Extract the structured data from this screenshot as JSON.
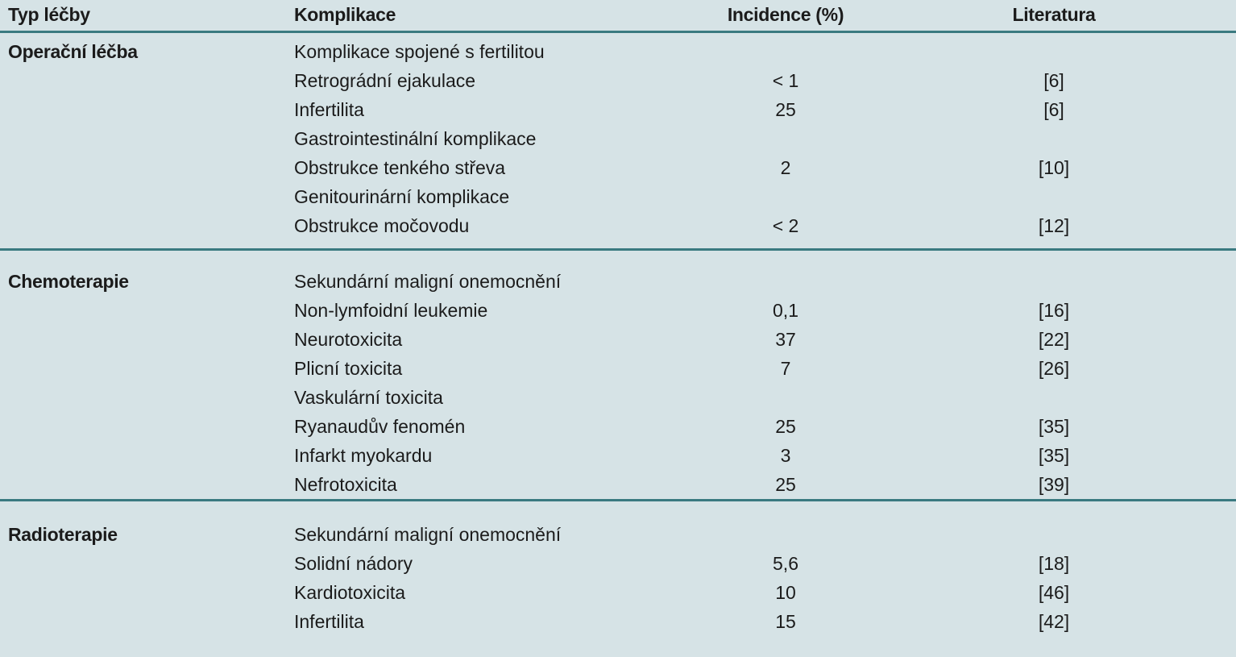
{
  "header": {
    "type": "Typ léčby",
    "complication": "Komplikace",
    "incidence": "Incidence (%)",
    "literature": "Literatura"
  },
  "sections": [
    {
      "type": "Operační léčba",
      "rows": [
        {
          "complication": "Komplikace spojené s fertilitou",
          "incidence": "",
          "literature": ""
        },
        {
          "complication": "Retrográdní ejakulace",
          "incidence": "< 1",
          "literature": "[6]"
        },
        {
          "complication": "Infertilita",
          "incidence": "25",
          "literature": "[6]"
        },
        {
          "complication": "Gastrointestinální komplikace",
          "incidence": "",
          "literature": ""
        },
        {
          "complication": "Obstrukce tenkého střeva",
          "incidence": "2",
          "literature": "[10]"
        },
        {
          "complication": "Genitourinární komplikace",
          "incidence": "",
          "literature": ""
        },
        {
          "complication": "Obstrukce močovodu",
          "incidence": "< 2",
          "literature": "[12]"
        }
      ]
    },
    {
      "type": "Chemoterapie",
      "rows": [
        {
          "complication": "Sekundární maligní onemocnění",
          "incidence": "",
          "literature": ""
        },
        {
          "complication": "Non-lymfoidní leukemie",
          "incidence": "0,1",
          "literature": "[16]"
        },
        {
          "complication": "Neurotoxicita",
          "incidence": "37",
          "literature": "[22]"
        },
        {
          "complication": "Plicní toxicita",
          "incidence": "7",
          "literature": "[26]"
        },
        {
          "complication": "Vaskulární toxicita",
          "incidence": "",
          "literature": ""
        },
        {
          "complication": "Ryanaudův fenomén",
          "incidence": "25",
          "literature": "[35]"
        },
        {
          "complication": "Infarkt myokardu",
          "incidence": "3",
          "literature": "[35]"
        },
        {
          "complication": "Nefrotoxicita",
          "incidence": "25",
          "literature": "[39]"
        }
      ]
    },
    {
      "type": "Radioterapie",
      "rows": [
        {
          "complication": "Sekundární maligní onemocnění",
          "incidence": "",
          "literature": ""
        },
        {
          "complication": "Solidní nádory",
          "incidence": "5,6",
          "literature": "[18]"
        },
        {
          "complication": "Kardiotoxicita",
          "incidence": "10",
          "literature": "[46]"
        },
        {
          "complication": "Infertilita",
          "incidence": "15",
          "literature": "[42]"
        }
      ]
    }
  ],
  "colors": {
    "background": "#d6e3e6",
    "rule": "#3a7a80",
    "text": "#1b1b1b"
  }
}
